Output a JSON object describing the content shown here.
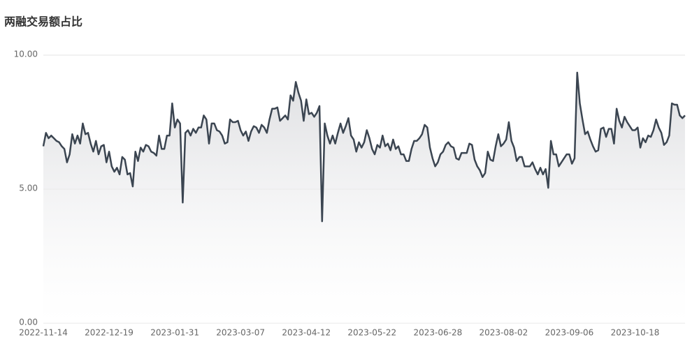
{
  "chart_data": {
    "type": "line",
    "title": "两融交易额占比",
    "categories": [
      "2022-11-14",
      null,
      null,
      null,
      null,
      null,
      null,
      null,
      null,
      null,
      null,
      null,
      null,
      null,
      null,
      null,
      null,
      null,
      null,
      null,
      null,
      null,
      null,
      null,
      null,
      "2022-12-19",
      null,
      null,
      null,
      null,
      null,
      null,
      null,
      null,
      null,
      null,
      null,
      null,
      null,
      null,
      null,
      null,
      null,
      null,
      null,
      null,
      null,
      null,
      null,
      null,
      "2023-01-31",
      null,
      null,
      null,
      null,
      null,
      null,
      null,
      null,
      null,
      null,
      null,
      null,
      null,
      null,
      null,
      null,
      null,
      null,
      null,
      null,
      null,
      null,
      null,
      null,
      "2023-03-07",
      null,
      null,
      null,
      null,
      null,
      null,
      null,
      null,
      null,
      null,
      null,
      null,
      null,
      null,
      null,
      null,
      null,
      null,
      null,
      null,
      null,
      null,
      null,
      null,
      "2023-04-12",
      null,
      null,
      null,
      null,
      null,
      null,
      null,
      null,
      null,
      null,
      null,
      null,
      null,
      null,
      null,
      null,
      null,
      null,
      null,
      null,
      null,
      null,
      null,
      null,
      "2023-05-22",
      null,
      null,
      null,
      null,
      null,
      null,
      null,
      null,
      null,
      null,
      null,
      null,
      null,
      null,
      null,
      null,
      null,
      null,
      null,
      null,
      null,
      null,
      null,
      null,
      "2023-06-28",
      null,
      null,
      null,
      null,
      null,
      null,
      null,
      null,
      null,
      null,
      null,
      null,
      null,
      null,
      null,
      null,
      null,
      null,
      null,
      null,
      null,
      null,
      null,
      null,
      "2023-08-02",
      null,
      null,
      null,
      null,
      null,
      null,
      null,
      null,
      null,
      null,
      null,
      null,
      null,
      null,
      null,
      null,
      null,
      null,
      null,
      null,
      null,
      null,
      null,
      null,
      "2023-09-06",
      null,
      null,
      null,
      null,
      null,
      null,
      null,
      null,
      null,
      null,
      null,
      null,
      null,
      null,
      null,
      null,
      null,
      null,
      null,
      null,
      null,
      null,
      null,
      null,
      "2023-10-18",
      null,
      null,
      null,
      null,
      null,
      null,
      null,
      null,
      null,
      null,
      null,
      null,
      null,
      null,
      null,
      null,
      null,
      null,
      null
    ],
    "values": [
      6.6,
      7.1,
      6.9,
      7.0,
      6.9,
      6.8,
      6.75,
      6.6,
      6.5,
      6.0,
      6.3,
      7.05,
      6.7,
      7.0,
      6.7,
      7.45,
      7.05,
      7.1,
      6.7,
      6.4,
      6.8,
      6.3,
      6.6,
      6.65,
      6.0,
      6.4,
      5.85,
      5.65,
      5.8,
      5.55,
      6.2,
      6.1,
      5.55,
      5.6,
      5.1,
      6.4,
      6.05,
      6.55,
      6.4,
      6.65,
      6.6,
      6.4,
      6.35,
      6.25,
      7.0,
      6.5,
      6.5,
      7.0,
      7.0,
      8.2,
      7.3,
      7.6,
      7.45,
      4.5,
      7.1,
      7.2,
      7.0,
      7.25,
      7.1,
      7.3,
      7.3,
      7.75,
      7.6,
      6.7,
      7.45,
      7.45,
      7.2,
      7.15,
      7.0,
      6.7,
      6.75,
      7.6,
      7.5,
      7.5,
      7.55,
      7.2,
      7.0,
      7.15,
      6.8,
      7.15,
      7.35,
      7.3,
      7.1,
      7.4,
      7.3,
      7.1,
      7.6,
      8.0,
      8.0,
      8.05,
      7.55,
      7.65,
      7.75,
      7.6,
      8.5,
      8.3,
      9.0,
      8.6,
      8.3,
      7.55,
      8.35,
      7.8,
      7.85,
      7.7,
      7.85,
      8.1,
      3.8,
      7.45,
      7.0,
      6.7,
      7.0,
      6.7,
      7.1,
      7.45,
      7.1,
      7.35,
      7.65,
      7.0,
      6.85,
      6.4,
      6.75,
      6.55,
      6.75,
      7.2,
      6.9,
      6.5,
      6.3,
      6.65,
      6.55,
      7.0,
      6.6,
      6.7,
      6.45,
      6.85,
      6.5,
      6.6,
      6.3,
      6.3,
      6.05,
      6.05,
      6.5,
      6.8,
      6.8,
      6.9,
      7.05,
      7.4,
      7.3,
      6.55,
      6.15,
      5.85,
      6.0,
      6.3,
      6.4,
      6.65,
      6.75,
      6.6,
      6.55,
      6.15,
      6.1,
      6.35,
      6.35,
      6.35,
      6.7,
      6.65,
      6.1,
      5.85,
      5.7,
      5.45,
      5.6,
      6.4,
      6.1,
      6.05,
      6.6,
      7.05,
      6.6,
      6.7,
      6.85,
      7.5,
      6.8,
      6.55,
      6.05,
      6.2,
      6.2,
      5.85,
      5.85,
      5.85,
      6.0,
      5.75,
      5.55,
      5.8,
      5.55,
      5.75,
      5.05,
      6.8,
      6.3,
      6.3,
      5.85,
      6.0,
      6.15,
      6.3,
      6.3,
      5.95,
      6.15,
      9.35,
      8.2,
      7.6,
      7.05,
      7.15,
      6.85,
      6.6,
      6.4,
      6.45,
      7.25,
      7.3,
      6.95,
      7.25,
      7.25,
      6.7,
      8.0,
      7.55,
      7.3,
      7.7,
      7.5,
      7.35,
      7.2,
      7.2,
      7.3,
      6.55,
      6.9,
      6.75,
      7.0,
      6.95,
      7.2,
      7.6,
      7.3,
      7.1,
      6.65,
      6.75,
      7.0,
      8.2,
      8.15,
      8.15,
      7.75,
      7.65,
      7.75
    ],
    "color": "#3b4551",
    "ylim": [
      0,
      10
    ],
    "yticks": [
      {
        "value": 0,
        "label": "0.00"
      },
      {
        "value": 5,
        "label": "5.00"
      },
      {
        "value": 10,
        "label": "10.00"
      }
    ],
    "grid": true
  }
}
